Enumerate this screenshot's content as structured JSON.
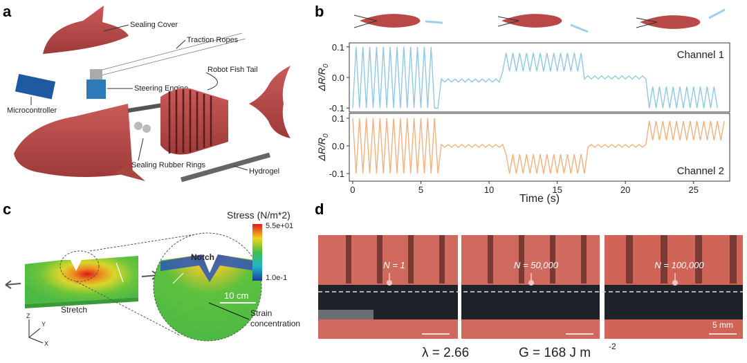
{
  "panel_a": {
    "label": "a",
    "annotations": [
      "Sealing Cover",
      "Traction Ropes",
      "Robot Fish Tail",
      "Steering Engine",
      "Microcontroller",
      "Sealing Rubber Rings",
      "Hydrogel"
    ]
  },
  "panel_b": {
    "label": "b"
  },
  "chart_data": {
    "type": "line",
    "x_label": "Time (s)",
    "x": [
      0,
      0.25,
      0.5,
      0.75,
      1,
      1.25,
      1.5,
      1.75,
      2,
      2.25,
      2.5,
      2.75,
      3,
      3.25,
      3.5,
      3.75,
      4,
      4.25,
      4.5,
      4.75,
      5,
      5.25,
      5.5,
      5.75,
      6,
      6.25,
      6.5,
      6.75,
      7,
      7.25,
      7.5,
      7.75,
      8,
      8.25,
      8.5,
      8.75,
      9,
      9.25,
      9.5,
      9.75,
      10,
      10.25,
      10.5,
      10.75,
      11,
      11.25,
      11.5,
      11.75,
      12,
      12.25,
      12.5,
      12.75,
      13,
      13.25,
      13.5,
      13.75,
      14,
      14.25,
      14.5,
      14.75,
      15,
      15.25,
      15.5,
      15.75,
      16,
      16.25,
      16.5,
      16.75,
      17,
      17.25,
      17.5,
      17.75,
      18,
      18.25,
      18.5,
      18.75,
      19,
      19.25,
      19.5,
      19.75,
      20,
      20.25,
      20.5,
      20.75,
      21,
      21.25,
      21.5,
      21.75,
      22,
      22.25,
      22.5,
      22.75,
      23,
      23.25,
      23.5,
      23.75,
      24,
      24.25,
      24.5,
      24.75,
      25,
      25.25,
      25.5,
      25.75,
      26,
      26.25,
      26.5,
      26.75,
      27,
      27.25
    ],
    "xlim": [
      -0.25,
      27.65
    ],
    "xticks": [
      0,
      5,
      10,
      15,
      20,
      25
    ],
    "panels": [
      {
        "y_label": "ΔR/R",
        "y_label_sub": "0",
        "ylim": [
          -0.113,
          0.113
        ],
        "yticks": [
          -0.1,
          {
            "value": 0,
            "label": "0.0"
          },
          0.1
        ],
        "series": [
          {
            "name": "Channel 1",
            "color": "#8fc8e4",
            "values": [
              -0.1,
              0.1,
              -0.1,
              0.1,
              -0.1,
              0.1,
              -0.1,
              0.1,
              -0.1,
              0.1,
              -0.1,
              0.1,
              -0.1,
              0.1,
              -0.1,
              0.1,
              -0.1,
              0.1,
              -0.1,
              0.1,
              -0.1,
              0.1,
              -0.1,
              0.1,
              -0.1,
              -0.1,
              -0.005,
              -0.015,
              -0.005,
              -0.015,
              -0.005,
              -0.015,
              -0.005,
              -0.015,
              -0.005,
              -0.015,
              -0.005,
              -0.015,
              -0.005,
              -0.015,
              -0.005,
              -0.015,
              -0.005,
              -0.015,
              0.02,
              0.08,
              0.02,
              0.08,
              0.02,
              0.08,
              0.02,
              0.08,
              0.02,
              0.08,
              0.02,
              0.08,
              0.02,
              0.08,
              0.02,
              0.08,
              0.02,
              0.08,
              0.02,
              0.08,
              0.02,
              0.08,
              0.02,
              0.08,
              -0.005,
              0.005,
              -0.005,
              0.005,
              -0.005,
              0.005,
              -0.005,
              0.005,
              -0.005,
              0.005,
              -0.005,
              0.005,
              -0.005,
              0.005,
              -0.005,
              0.005,
              -0.005,
              0.005,
              -0.005,
              -0.1,
              -0.03,
              -0.1,
              -0.03,
              -0.1,
              -0.03,
              -0.1,
              -0.03,
              -0.1,
              -0.03,
              -0.1,
              -0.03,
              -0.1,
              -0.03,
              -0.1,
              -0.03,
              -0.1,
              -0.03,
              -0.1,
              -0.03,
              -0.1
            ]
          }
        ]
      },
      {
        "y_label": "ΔR/R",
        "y_label_sub": "0",
        "ylim": [
          -0.1275,
          0.1175
        ],
        "yticks": [
          -0.1,
          {
            "value": 0,
            "label": "0.0"
          },
          0.1
        ],
        "series": [
          {
            "name": "Channel 2",
            "color": "#f2b07e",
            "values": [
              0.1,
              -0.1,
              0.1,
              -0.1,
              0.1,
              -0.1,
              0.1,
              -0.1,
              0.1,
              -0.1,
              0.1,
              -0.1,
              0.1,
              -0.1,
              0.1,
              -0.1,
              0.1,
              -0.1,
              0.1,
              -0.1,
              0.1,
              -0.1,
              0.1,
              -0.1,
              0.1,
              -0.1,
              0.005,
              -0.005,
              0.005,
              -0.005,
              0.005,
              -0.005,
              0.005,
              -0.005,
              0.005,
              -0.005,
              0.005,
              -0.005,
              0.005,
              -0.005,
              0.005,
              -0.005,
              0.005,
              -0.005,
              0.005,
              -0.03,
              -0.1,
              -0.03,
              -0.1,
              -0.03,
              -0.1,
              -0.03,
              -0.1,
              -0.03,
              -0.1,
              -0.03,
              -0.1,
              -0.03,
              -0.1,
              -0.03,
              -0.1,
              -0.03,
              -0.1,
              -0.03,
              -0.1,
              -0.03,
              -0.1,
              -0.03,
              -0.1,
              -0.005,
              0.005,
              -0.005,
              0.005,
              -0.005,
              0.005,
              -0.005,
              0.005,
              -0.005,
              0.005,
              -0.005,
              0.005,
              -0.005,
              0.005,
              -0.005,
              0.005,
              -0.005,
              0.005,
              0.09,
              0.02,
              0.09,
              0.02,
              0.09,
              0.02,
              0.09,
              0.02,
              0.09,
              0.02,
              0.09,
              0.02,
              0.09,
              0.02,
              0.09,
              0.02,
              0.09,
              0.02,
              0.09,
              0.02,
              0.09,
              0.02,
              0.09
            ]
          }
        ]
      }
    ]
  },
  "panel_c": {
    "label": "c",
    "colorbar_title": "Stress (N/m*2)",
    "colorbar_max": "5.5e+01",
    "colorbar_min": "1.0e-1",
    "notch": "Notch",
    "scale": "10 cm",
    "stretch": "Stretch",
    "strain": [
      "Strain",
      "concentration"
    ],
    "axes": [
      "Z",
      "Y",
      "X"
    ]
  },
  "panel_d": {
    "label": "d",
    "cycles": [
      "N = 1",
      "N = 50,000",
      "N = 100,000"
    ],
    "scale": "5 mm",
    "stretch_ratio": "λ = 2.66",
    "energy": "G = 168 J m",
    "energy_exp": "-2"
  }
}
